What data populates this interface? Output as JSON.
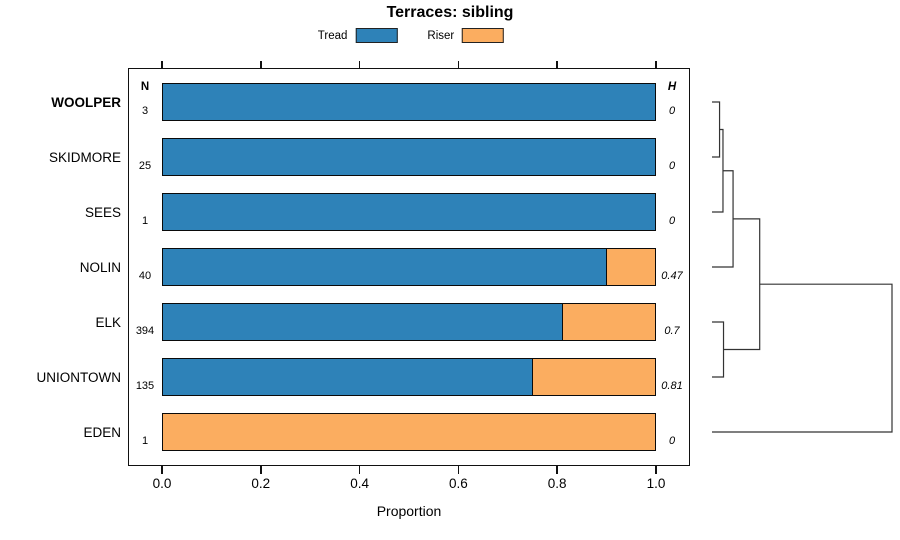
{
  "title": "Terraces: sibling",
  "chart_data": {
    "type": "bar",
    "orientation": "horizontal",
    "stacked": true,
    "title": "Terraces: sibling",
    "xlabel": "Proportion",
    "xlim": [
      0,
      1
    ],
    "xticks": [
      "0.0",
      "0.2",
      "0.4",
      "0.6",
      "0.8",
      "1.0"
    ],
    "grid": false,
    "legend_position": "top-center",
    "categories": [
      "WOOLPER",
      "SKIDMORE",
      "SEES",
      "NOLIN",
      "ELK",
      "UNIONTOWN",
      "EDEN"
    ],
    "series": [
      {
        "name": "Tread",
        "color": "#2E82B8",
        "values": [
          1.0,
          1.0,
          1.0,
          0.9,
          0.81,
          0.75,
          0.0
        ]
      },
      {
        "name": "Riser",
        "color": "#FBAD60",
        "values": [
          0.0,
          0.0,
          0.0,
          0.1,
          0.19,
          0.25,
          1.0
        ]
      }
    ],
    "annotation_headers": {
      "n": "N",
      "h": "H"
    },
    "row_annotations": {
      "N": [
        "3",
        "25",
        "1",
        "40",
        "394",
        "135",
        "1"
      ],
      "H": [
        "0",
        "0",
        "0",
        "0.47",
        "0.7",
        "0.81",
        "0"
      ]
    },
    "highlighted_category": "WOOLPER",
    "dendrogram": {
      "side": "right",
      "leaf_order": [
        "WOOLPER",
        "SKIDMORE",
        "SEES",
        "NOLIN",
        "ELK",
        "UNIONTOWN",
        "EDEN"
      ],
      "merges": [
        {
          "a": "WOOLPER",
          "b": "SKIDMORE",
          "height": 0.042
        },
        {
          "a": "#0",
          "b": "SEES",
          "height": 0.061
        },
        {
          "a": "#1",
          "b": "NOLIN",
          "height": 0.117
        },
        {
          "a": "ELK",
          "b": "UNIONTOWN",
          "height": 0.064
        },
        {
          "a": "#2",
          "b": "#3",
          "height": 0.265
        },
        {
          "a": "#4",
          "b": "EDEN",
          "height": 1.0
        }
      ]
    },
    "colors": {
      "bar_border": "#0a0a0a",
      "dendrogram_line": "#333333",
      "text": "#000000"
    }
  }
}
